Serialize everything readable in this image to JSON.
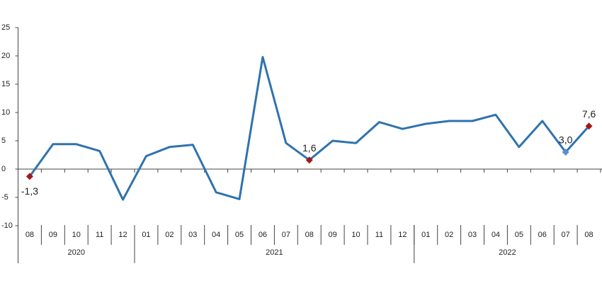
{
  "chart_data": {
    "type": "line",
    "categories": [
      "08",
      "09",
      "10",
      "11",
      "12",
      "01",
      "02",
      "03",
      "04",
      "05",
      "06",
      "07",
      "08",
      "09",
      "10",
      "11",
      "12",
      "01",
      "02",
      "03",
      "04",
      "05",
      "06",
      "07",
      "08"
    ],
    "x_groups": [
      {
        "label": "2020",
        "span": 5
      },
      {
        "label": "2021",
        "span": 12
      },
      {
        "label": "2022",
        "span": 8
      }
    ],
    "series": [
      {
        "color": "#2f73ad",
        "values": [
          -1.3,
          4.4,
          4.4,
          3.2,
          -5.4,
          2.3,
          3.9,
          4.3,
          -4.1,
          -5.3,
          19.8,
          4.6,
          1.6,
          5.0,
          4.6,
          8.3,
          7.1,
          8.0,
          8.5,
          8.5,
          9.6,
          3.9,
          8.5,
          3.0,
          7.6
        ],
        "value_labels": [
          "-1,3",
          null,
          null,
          null,
          null,
          null,
          null,
          null,
          null,
          null,
          null,
          null,
          "1,6",
          null,
          null,
          null,
          null,
          null,
          null,
          null,
          null,
          null,
          null,
          "3,0",
          "7,6"
        ],
        "marker_colors": [
          "#a31919",
          null,
          null,
          null,
          null,
          null,
          null,
          null,
          null,
          null,
          null,
          null,
          "#a31919",
          null,
          null,
          null,
          null,
          null,
          null,
          null,
          null,
          null,
          null,
          "#5b8fd0",
          "#a31919"
        ]
      }
    ],
    "ylim": [
      -10,
      25
    ],
    "yticks": [
      -10,
      -5,
      0,
      5,
      10,
      15,
      20,
      25
    ]
  }
}
